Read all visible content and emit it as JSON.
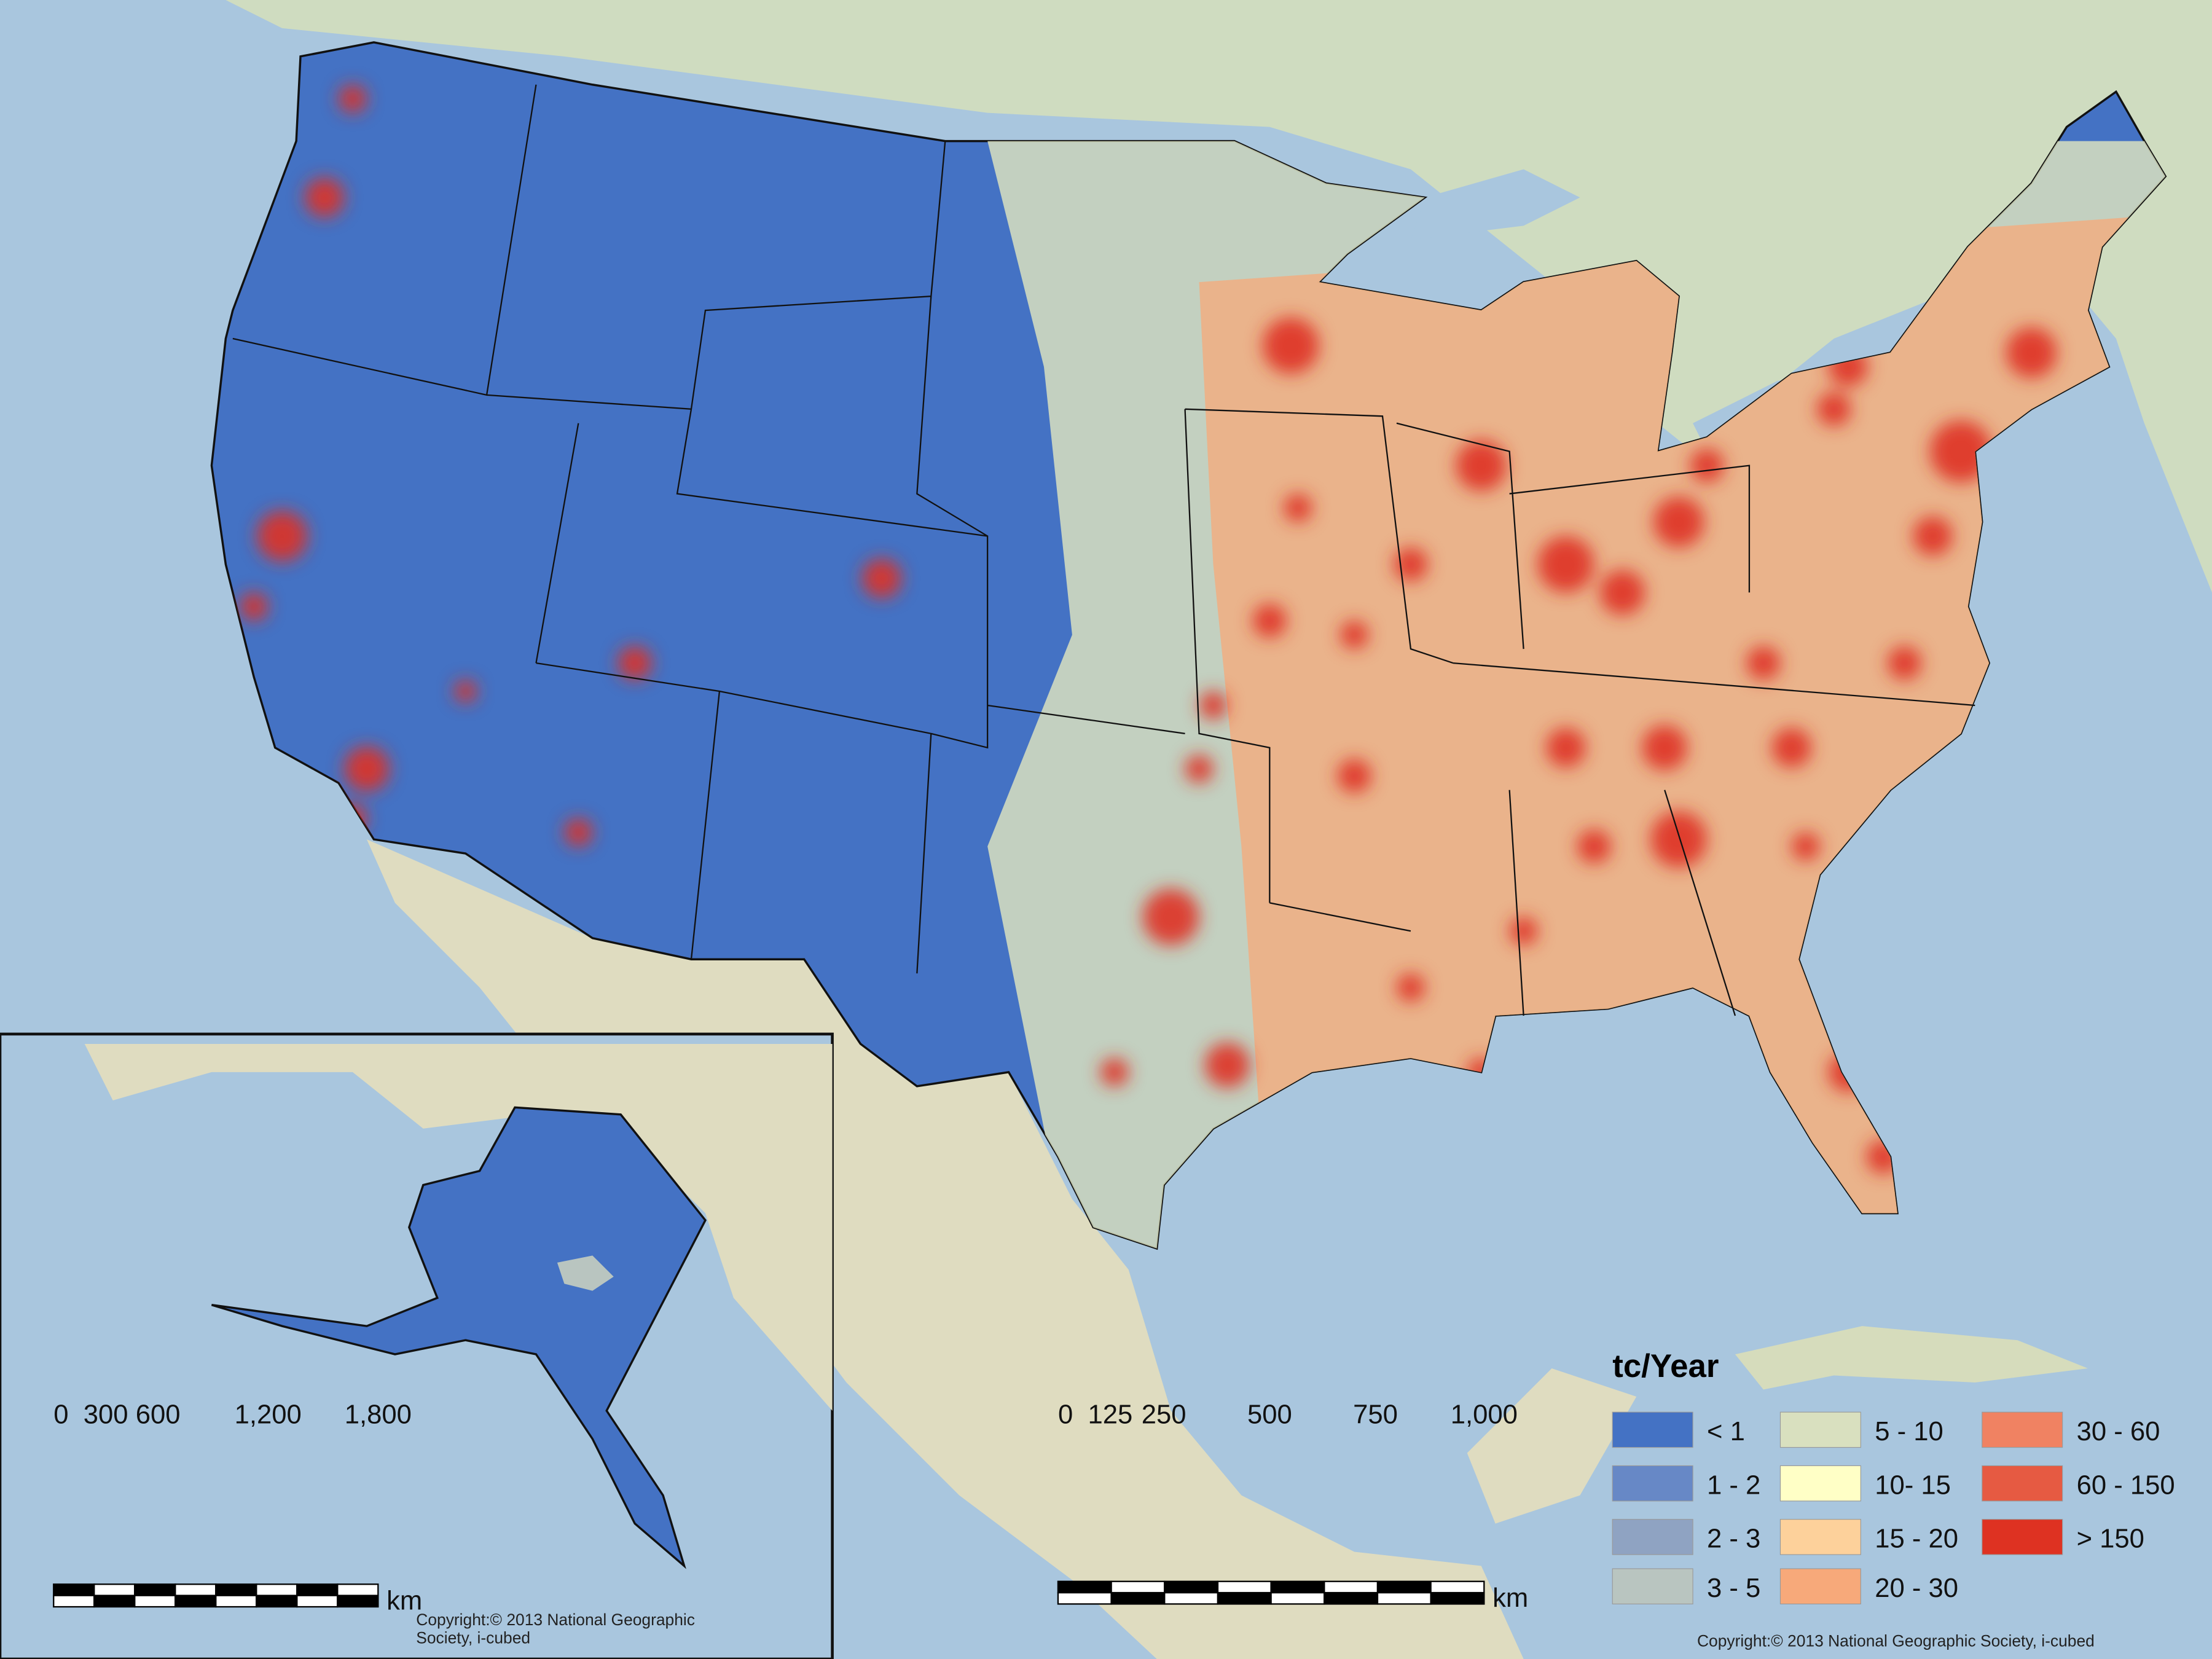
{
  "map": {
    "legend": {
      "title": "tc/Year",
      "items": [
        {
          "label": "< 1",
          "color": "#4472c4"
        },
        {
          "label": "1 - 2",
          "color": "#6788c6"
        },
        {
          "label": "2 - 3",
          "color": "#8fa3c2"
        },
        {
          "label": "3 - 5",
          "color": "#b9c5c0"
        },
        {
          "label": "5 - 10",
          "color": "#d9e0bf"
        },
        {
          "label": "10- 15",
          "color": "#ffffc6"
        },
        {
          "label": "15 - 20",
          "color": "#fdd19b"
        },
        {
          "label": "20 - 30",
          "color": "#f7a97a"
        },
        {
          "label": "30 - 60",
          "color": "#f08262"
        },
        {
          "label": "60 - 150",
          "color": "#e65a42"
        },
        {
          "label": "> 150",
          "color": "#de3222"
        }
      ]
    },
    "scale_bars": [
      {
        "ticks": [
          "0",
          "300",
          "600",
          "1,200",
          "1,800"
        ],
        "unit": "km"
      },
      {
        "ticks": [
          "0",
          "125",
          "250",
          "500",
          "750",
          "1,000"
        ],
        "unit": "km"
      }
    ],
    "copyrights": [
      [
        "Copyright:© 2013 National Geographic",
        "Society, i-cubed"
      ],
      [
        "Copyright:© 2013 National Geographic Society, i-cubed"
      ]
    ]
  }
}
